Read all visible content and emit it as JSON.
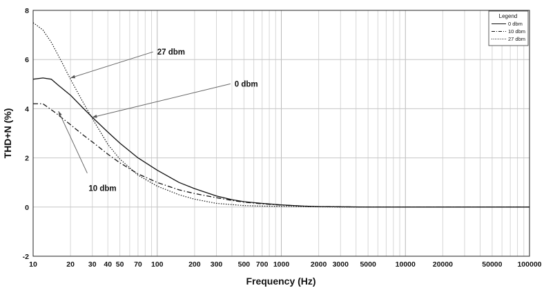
{
  "chart_data": {
    "type": "line",
    "xlabel": "Frequency (Hz)",
    "ylabel": "THD+N (%)",
    "xscale": "log",
    "xlim": [
      10,
      100000
    ],
    "ylim": [
      -2,
      8
    ],
    "x_ticks": [
      10,
      20,
      30,
      40,
      50,
      70,
      100,
      200,
      300,
      500,
      700,
      1000,
      2000,
      3000,
      5000,
      10000,
      20000,
      50000,
      100000
    ],
    "y_ticks": [
      -2,
      0,
      2,
      4,
      6,
      8
    ],
    "grid": true,
    "legend": {
      "title": "Legend",
      "placement": "top-right"
    },
    "series": [
      {
        "name": "0 dbm",
        "line_style": "solid",
        "color": "#111111",
        "x": [
          10,
          12,
          14,
          16,
          20,
          25,
          30,
          40,
          50,
          70,
          100,
          150,
          200,
          300,
          400,
          500,
          700,
          1000,
          1500,
          2000,
          3000,
          5000,
          10000,
          20000,
          50000,
          100000
        ],
        "y": [
          5.2,
          5.25,
          5.2,
          4.95,
          4.55,
          4.05,
          3.65,
          3.05,
          2.6,
          2.0,
          1.5,
          1.0,
          0.75,
          0.45,
          0.3,
          0.22,
          0.15,
          0.09,
          0.04,
          0.02,
          0.01,
          0.0,
          0.0,
          0.0,
          0.0,
          0.0
        ]
      },
      {
        "name": "10 dbm",
        "line_style": "dash-dot",
        "color": "#111111",
        "x": [
          10,
          12,
          15,
          20,
          25,
          30,
          40,
          50,
          70,
          100,
          150,
          200,
          300,
          400,
          500,
          700,
          1000,
          1500,
          2000,
          3000,
          5000,
          10000,
          20000,
          50000,
          100000
        ],
        "y": [
          4.2,
          4.2,
          3.85,
          3.35,
          2.95,
          2.65,
          2.15,
          1.8,
          1.35,
          1.0,
          0.7,
          0.55,
          0.38,
          0.27,
          0.2,
          0.13,
          0.08,
          0.04,
          0.02,
          0.01,
          0.0,
          0.0,
          0.0,
          0.0,
          0.0
        ]
      },
      {
        "name": "27 dbm",
        "line_style": "dotted",
        "color": "#111111",
        "x": [
          10,
          12,
          14,
          17,
          20,
          25,
          30,
          40,
          50,
          70,
          100,
          150,
          200,
          300,
          500,
          700,
          1000,
          1500,
          2000,
          3000,
          5000,
          10000,
          20000,
          50000,
          100000
        ],
        "y": [
          7.5,
          7.2,
          6.7,
          5.9,
          5.2,
          4.3,
          3.6,
          2.55,
          1.95,
          1.3,
          0.85,
          0.5,
          0.32,
          0.15,
          0.06,
          0.04,
          0.03,
          0.02,
          0.01,
          0.0,
          0.0,
          0.0,
          0.0,
          0.0,
          0.0
        ]
      }
    ],
    "annotations": [
      {
        "text": "27 dbm",
        "series": "27 dbm",
        "label_at": [
          100,
          6.2
        ],
        "arrow_to": [
          20,
          5.25
        ]
      },
      {
        "text": "0 dbm",
        "series": "0 dbm",
        "label_at": [
          420,
          4.9
        ],
        "arrow_to": [
          30,
          3.65
        ]
      },
      {
        "text": "10 dbm",
        "series": "10 dbm",
        "label_at": [
          28,
          0.65
        ],
        "arrow_to": [
          16,
          3.9
        ]
      }
    ]
  }
}
